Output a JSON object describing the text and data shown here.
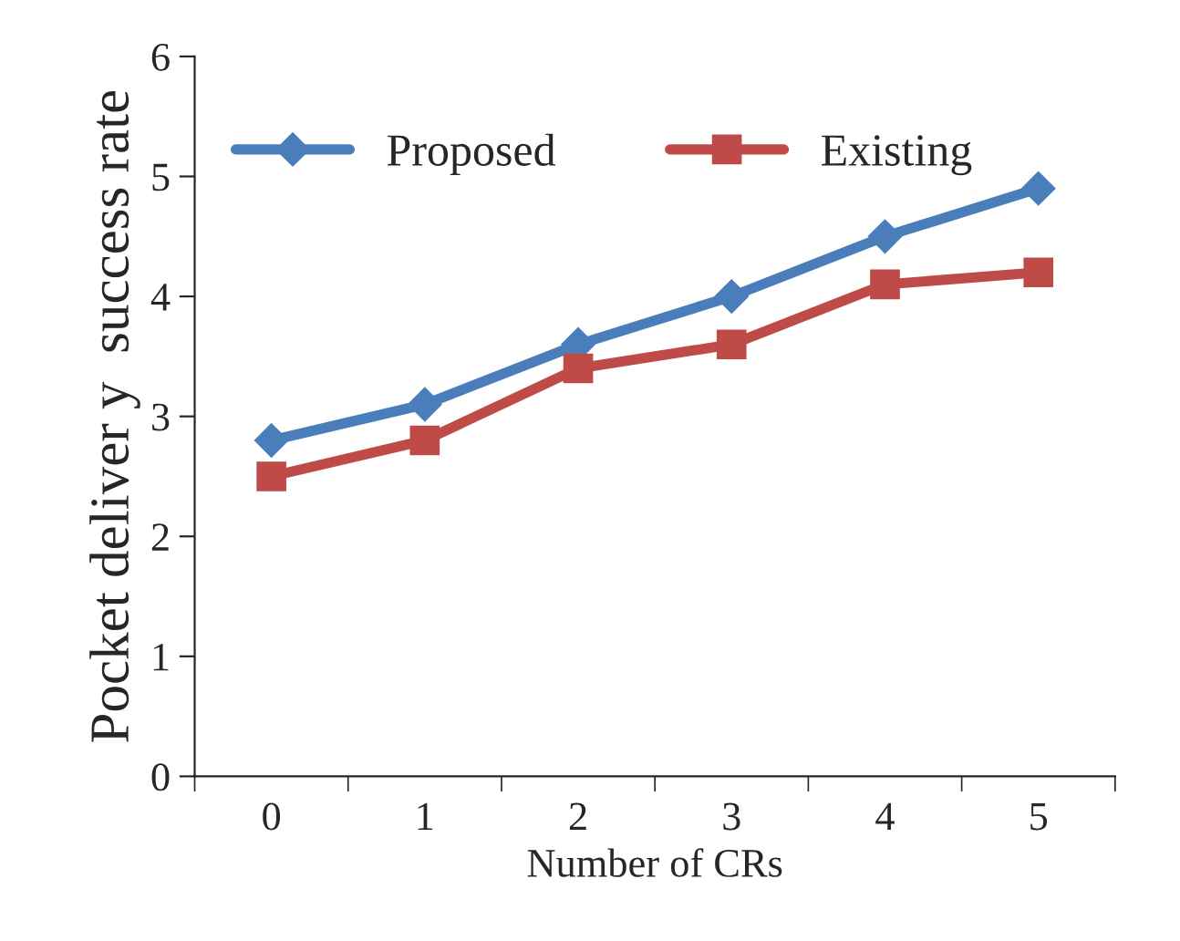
{
  "chart_data": {
    "type": "line",
    "xlabel": "Number of CRs",
    "ylabel": "Pocket deliver y  success rate",
    "categories": [
      "0",
      "1",
      "2",
      "3",
      "4",
      "5"
    ],
    "series": [
      {
        "name": "Proposed",
        "color": "#4a7ebb",
        "marker": "diamond",
        "values": [
          2.8,
          3.1,
          3.6,
          4.0,
          4.5,
          4.9
        ]
      },
      {
        "name": "Existing",
        "color": "#be4b48",
        "marker": "square",
        "values": [
          2.5,
          2.8,
          3.4,
          3.6,
          4.1,
          4.2
        ]
      }
    ],
    "ylim": [
      0,
      6
    ],
    "yticks": [
      0,
      1,
      2,
      3,
      4,
      5,
      6
    ],
    "grid": false,
    "legend": "top left",
    "line_style": "solid"
  }
}
